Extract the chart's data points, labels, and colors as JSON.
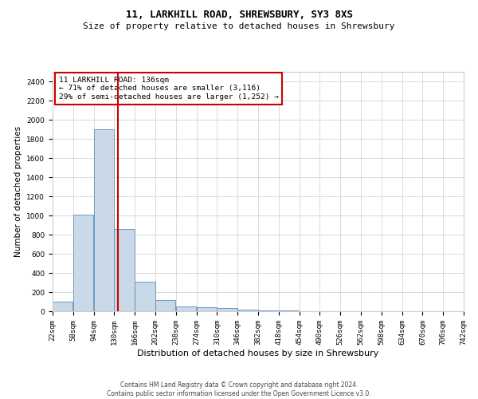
{
  "title1": "11, LARKHILL ROAD, SHREWSBURY, SY3 8XS",
  "title2": "Size of property relative to detached houses in Shrewsbury",
  "xlabel": "Distribution of detached houses by size in Shrewsbury",
  "ylabel": "Number of detached properties",
  "annotation_line1": "11 LARKHILL ROAD: 136sqm",
  "annotation_line2": "← 71% of detached houses are smaller (3,116)",
  "annotation_line3": "29% of semi-detached houses are larger (1,252) →",
  "property_size": 136,
  "bin_edges": [
    22,
    58,
    94,
    130,
    166,
    202,
    238,
    274,
    310,
    346,
    382,
    418,
    454,
    490,
    526,
    562,
    598,
    634,
    670,
    706,
    742
  ],
  "bin_counts": [
    100,
    1010,
    1900,
    860,
    310,
    120,
    50,
    40,
    30,
    20,
    10,
    5,
    3,
    2,
    1,
    1,
    1,
    0,
    0,
    0
  ],
  "bar_color": "#c9d9e8",
  "bar_edge_color": "#5b8db8",
  "vline_color": "#cc0000",
  "vline_x": 136,
  "box_edge_color": "#cc0000",
  "background_color": "#ffffff",
  "grid_color": "#cccccc",
  "footer_line1": "Contains HM Land Registry data © Crown copyright and database right 2024.",
  "footer_line2": "Contains public sector information licensed under the Open Government Licence v3.0.",
  "ylim": [
    0,
    2500
  ],
  "yticks": [
    0,
    200,
    400,
    600,
    800,
    1000,
    1200,
    1400,
    1600,
    1800,
    2000,
    2200,
    2400
  ],
  "title1_fontsize": 9,
  "title2_fontsize": 8,
  "xlabel_fontsize": 8,
  "ylabel_fontsize": 7.5,
  "tick_fontsize": 6.5,
  "footer_fontsize": 5.5
}
